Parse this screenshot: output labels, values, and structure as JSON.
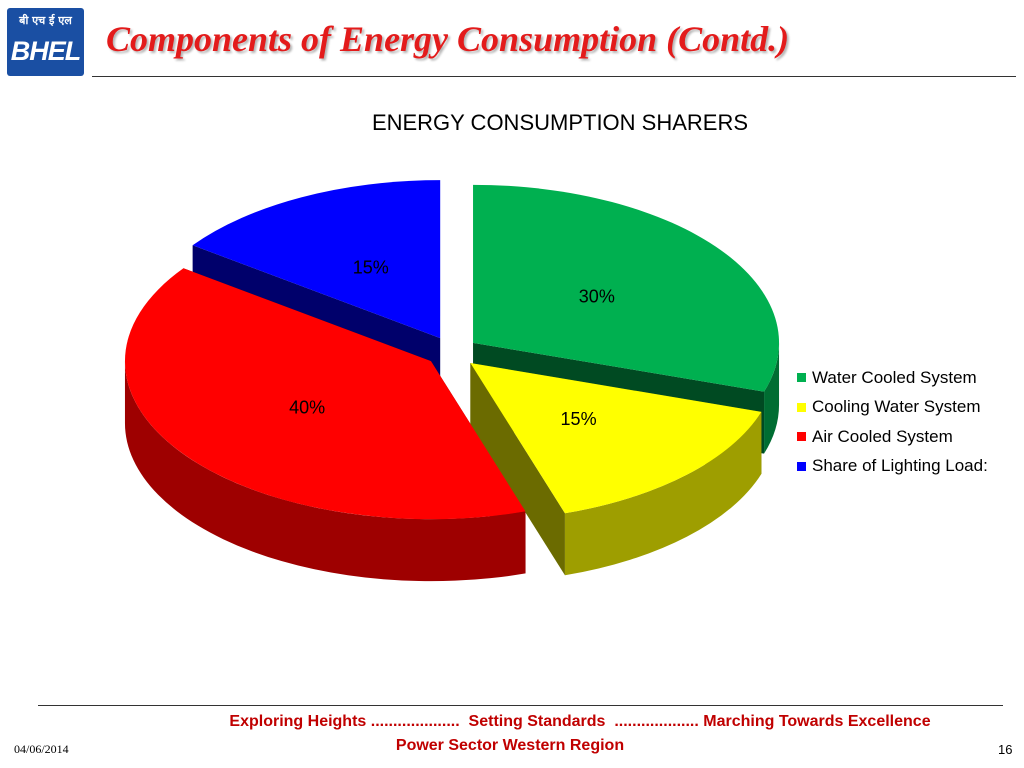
{
  "header": {
    "logo_hindi": "बी एच ई एल",
    "logo_text": "BHEL",
    "title": "Components of Energy Consumption (Contd.)"
  },
  "chart_data": {
    "type": "pie",
    "title": "ENERGY CONSUMPTION SHARERS",
    "categories": [
      " Water Cooled System",
      "Cooling Water System",
      "Air Cooled System",
      "Share of Lighting Load:"
    ],
    "values": [
      30,
      15,
      40,
      15
    ],
    "data_labels": [
      "30%",
      "15%",
      "40%",
      "15%"
    ],
    "colors": [
      "#00b050",
      "#ffff00",
      "#ff0000",
      "#0000ff"
    ],
    "legend_position": "right",
    "style": "3d exploded"
  },
  "footer": {
    "tagline": "Exploring Heights ....................  Setting Standards  ................... Marching Towards Excellence",
    "region": "Power Sector Western Region",
    "date": "04/06/2014",
    "page": "16"
  }
}
